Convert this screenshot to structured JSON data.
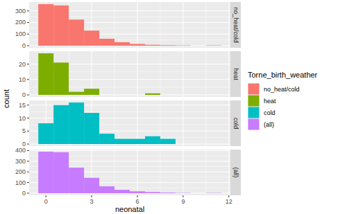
{
  "chart_data": {
    "type": "histogram",
    "x_label": "neonatal",
    "y_label": "count",
    "legend_title": "Torne_birth_weather",
    "legend": "right",
    "grid": true,
    "bins": [
      -0.5,
      0.5,
      1.5,
      2.5,
      3.5,
      4.5,
      5.5,
      6.5,
      7.5,
      8.5,
      9.5,
      10.5,
      11.5
    ],
    "xlim": [
      -1.1,
      12.1
    ],
    "xticks": [
      0,
      3,
      6,
      9,
      12
    ],
    "series": [
      {
        "name": "no_heat/cold",
        "color": "#F8766D",
        "values": [
          358,
          347,
          225,
          130,
          60,
          30,
          15,
          8,
          5,
          3,
          0,
          3
        ],
        "ylim": [
          -18,
          376
        ],
        "yticks": [
          0,
          100,
          200,
          300
        ]
      },
      {
        "name": "heat",
        "color": "#7CAE00",
        "values": [
          27,
          21,
          2,
          4,
          0,
          0,
          0,
          1,
          0,
          0,
          0,
          0
        ],
        "ylim": [
          -1.35,
          28.35
        ],
        "yticks": [
          0,
          10,
          20
        ]
      },
      {
        "name": "cold",
        "color": "#00BFC4",
        "values": [
          8,
          15,
          16,
          12,
          4,
          2,
          2,
          3,
          2,
          0,
          0,
          0
        ],
        "ylim": [
          -0.8,
          16.8
        ],
        "yticks": [
          0,
          5,
          10,
          15
        ]
      },
      {
        "name": "(all)",
        "color": "#C77CFF",
        "values": [
          390,
          385,
          240,
          145,
          65,
          32,
          18,
          11,
          6,
          3,
          0,
          3
        ],
        "ylim": [
          -19.5,
          409.5
        ],
        "yticks": [
          0,
          100,
          200,
          300,
          400
        ]
      }
    ]
  }
}
